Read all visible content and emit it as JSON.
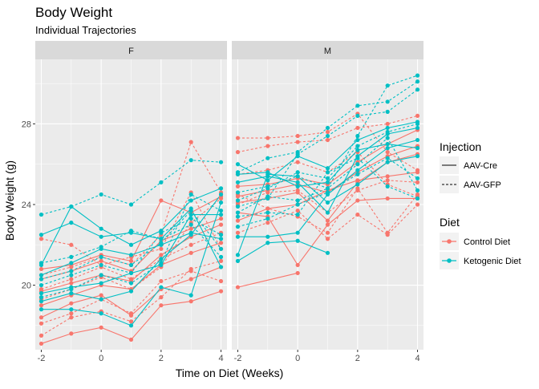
{
  "chart_data": {
    "type": "line",
    "title": "Body Weight",
    "subtitle": "Individual Trajectories",
    "xlabel": "Time on Diet (Weeks)",
    "ylabel": "Body Weight (g)",
    "xlim": [
      -2.2,
      4.2
    ],
    "ylim": [
      16.8,
      31.2
    ],
    "x_ticks": [
      -2,
      0,
      2,
      4
    ],
    "y_ticks": [
      20,
      24,
      28
    ],
    "x": [
      -2,
      -1,
      0,
      1,
      2,
      3,
      4
    ],
    "grid": true,
    "legend_placement": "right",
    "colors": {
      "control": "#F8766D",
      "ketogenic": "#00BFC4"
    },
    "facets": [
      {
        "label": "F",
        "series": [
          {
            "diet": "control",
            "injection": "AAV-Cre",
            "values": [
              17.1,
              17.6,
              17.9,
              17.3,
              19.0,
              19.2,
              19.7
            ]
          },
          {
            "diet": "control",
            "injection": "AAV-Cre",
            "values": [
              18.4,
              19.1,
              19.5,
              18.5,
              19.8,
              20.3,
              20.9
            ]
          },
          {
            "diet": "control",
            "injection": "AAV-Cre",
            "values": [
              19.0,
              19.5,
              20.0,
              19.8,
              21.0,
              21.6,
              22.1
            ]
          },
          {
            "diet": "control",
            "injection": "AAV-Cre",
            "values": [
              19.7,
              20.1,
              20.5,
              20.2,
              21.5,
              22.4,
              23.0
            ]
          },
          {
            "diet": "control",
            "injection": "AAV-Cre",
            "values": [
              20.3,
              20.7,
              21.2,
              20.7,
              22.2,
              22.8,
              23.3
            ]
          },
          {
            "diet": "control",
            "injection": "AAV-Cre",
            "values": [
              20.8,
              21.0,
              21.5,
              21.2,
              24.2,
              23.6,
              24.4
            ]
          },
          {
            "diet": "control",
            "injection": "AAV-GFP",
            "values": [
              17.5,
              18.4,
              18.7,
              18.2,
              19.4,
              20.8,
              21.2
            ]
          },
          {
            "diet": "control",
            "injection": "AAV-GFP",
            "values": [
              18.1,
              18.6,
              19.3,
              18.6,
              20.2,
              20.7,
              20.2
            ]
          },
          {
            "diet": "control",
            "injection": "AAV-GFP",
            "values": [
              19.8,
              20.3,
              20.9,
              20.3,
              21.3,
              22.0,
              22.6
            ]
          },
          {
            "diet": "control",
            "injection": "AAV-GFP",
            "values": [
              20.5,
              20.9,
              21.4,
              21.0,
              22.5,
              27.1,
              24.6
            ]
          },
          {
            "diet": "control",
            "injection": "AAV-GFP",
            "values": [
              22.3,
              22.0,
              21.0,
              21.4,
              21.8,
              24.6,
              21.8
            ]
          },
          {
            "diet": "control",
            "injection": "AAV-GFP",
            "values": [
              19.3,
              19.8,
              20.4,
              19.8,
              20.9,
              23.1,
              24.3
            ]
          },
          {
            "diet": "ketogenic",
            "injection": "AAV-Cre",
            "values": [
              18.8,
              18.8,
              18.6,
              18.0,
              19.9,
              19.5,
              24.1
            ]
          },
          {
            "diet": "ketogenic",
            "injection": "AAV-Cre",
            "values": [
              19.6,
              19.9,
              20.1,
              20.6,
              21.0,
              23.5,
              23.5
            ]
          },
          {
            "diet": "ketogenic",
            "injection": "AAV-Cre",
            "values": [
              20.5,
              21.1,
              21.8,
              21.5,
              22.0,
              22.6,
              22.3
            ]
          },
          {
            "diet": "ketogenic",
            "injection": "AAV-Cre",
            "values": [
              22.5,
              23.1,
              22.4,
              22.6,
              22.3,
              23.8,
              20.9
            ]
          },
          {
            "diet": "ketogenic",
            "injection": "AAV-Cre",
            "values": [
              21.0,
              23.9,
              22.8,
              22.0,
              22.7,
              24.2,
              24.8
            ]
          },
          {
            "diet": "ketogenic",
            "injection": "AAV-Cre",
            "values": [
              19.2,
              19.6,
              19.3,
              19.7,
              21.3,
              22.5,
              24.5
            ]
          },
          {
            "diet": "ketogenic",
            "injection": "AAV-GFP",
            "values": [
              23.5,
              23.9,
              24.5,
              24.0,
              25.1,
              26.2,
              26.1
            ]
          },
          {
            "diet": "ketogenic",
            "injection": "AAV-GFP",
            "values": [
              19.4,
              19.8,
              20.5,
              20.1,
              21.1,
              24.5,
              23.7
            ]
          },
          {
            "diet": "ketogenic",
            "injection": "AAV-GFP",
            "values": [
              20.0,
              20.5,
              21.0,
              20.6,
              22.6,
              23.3,
              22.5
            ]
          },
          {
            "diet": "ketogenic",
            "injection": "AAV-GFP",
            "values": [
              21.1,
              21.4,
              21.9,
              22.7,
              22.3,
              23.0,
              21.4
            ]
          },
          {
            "diet": "ketogenic",
            "injection": "AAV-GFP",
            "values": [
              20.3,
              20.7,
              21.4,
              21.0,
              22.1,
              23.7,
              21.8
            ]
          }
        ]
      },
      {
        "label": "M",
        "series": [
          {
            "diet": "control",
            "injection": "AAV-Cre",
            "values": [
              19.9,
              null,
              20.6,
              null,
              null,
              null,
              null
            ]
          },
          {
            "diet": "control",
            "injection": "AAV-Cre",
            "values": [
              23.6,
              23.4,
              21.0,
              23.0,
              24.2,
              24.3,
              24.3
            ]
          },
          {
            "diet": "control",
            "injection": "AAV-Cre",
            "values": [
              24.1,
              24.3,
              24.6,
              23.2,
              25.1,
              26.1,
              26.5
            ]
          },
          {
            "diet": "control",
            "injection": "AAV-Cre",
            "values": [
              24.4,
              24.7,
              25.0,
              24.6,
              25.6,
              26.4,
              26.9
            ]
          },
          {
            "diet": "control",
            "injection": "AAV-Cre",
            "values": [
              24.9,
              25.0,
              25.3,
              25.0,
              26.1,
              27.0,
              27.7
            ]
          },
          {
            "diet": "control",
            "injection": "AAV-Cre",
            "values": [
              23.2,
              23.8,
              24.0,
              24.7,
              25.2,
              25.4,
              25.6
            ]
          },
          {
            "diet": "control",
            "injection": "AAV-GFP",
            "values": [
              27.3,
              27.3,
              27.4,
              27.6,
              28.5,
              26.6,
              25.7
            ]
          },
          {
            "diet": "control",
            "injection": "AAV-GFP",
            "values": [
              26.6,
              26.9,
              27.1,
              27.2,
              27.8,
              28.0,
              28.4
            ]
          },
          {
            "diet": "control",
            "injection": "AAV-GFP",
            "values": [
              25.5,
              25.7,
              26.1,
              25.6,
              26.6,
              25.0,
              24.4
            ]
          },
          {
            "diet": "control",
            "injection": "AAV-GFP",
            "values": [
              24.5,
              23.8,
              23.4,
              22.6,
              24.8,
              22.6,
              24.5
            ]
          },
          {
            "diet": "control",
            "injection": "AAV-GFP",
            "values": [
              22.6,
              23.1,
              23.7,
              22.3,
              23.5,
              22.5,
              24.0
            ]
          },
          {
            "diet": "control",
            "injection": "AAV-GFP",
            "values": [
              24.0,
              24.6,
              24.7,
              23.6,
              24.7,
              25.2,
              25.1
            ]
          },
          {
            "diet": "ketogenic",
            "injection": "AAV-Cre",
            "values": [
              21.2,
              22.1,
              22.2,
              21.6,
              null,
              null,
              null
            ]
          },
          {
            "diet": "ketogenic",
            "injection": "AAV-Cre",
            "values": [
              21.5,
              25.5,
              25.4,
              24.1,
              25.0,
              26.1,
              26.4
            ]
          },
          {
            "diet": "ketogenic",
            "injection": "AAV-Cre",
            "values": [
              22.4,
              22.4,
              22.6,
              24.5,
              25.7,
              26.8,
              27.2
            ]
          },
          {
            "diet": "ketogenic",
            "injection": "AAV-Cre",
            "values": [
              25.1,
              25.4,
              25.1,
              23.6,
              26.4,
              27.5,
              27.8
            ]
          },
          {
            "diet": "ketogenic",
            "injection": "AAV-Cre",
            "values": [
              25.5,
              25.6,
              24.9,
              25.1,
              26.7,
              27.0,
              26.8
            ]
          },
          {
            "diet": "ketogenic",
            "injection": "AAV-Cre",
            "values": [
              26.0,
              25.2,
              26.4,
              25.8,
              27.2,
              27.8,
              28.1
            ]
          },
          {
            "diet": "ketogenic",
            "injection": "AAV-GFP",
            "values": [
              23.6,
              24.4,
              24.2,
              24.8,
              27.4,
              29.9,
              30.4
            ]
          },
          {
            "diet": "ketogenic",
            "injection": "AAV-GFP",
            "values": [
              25.6,
              26.3,
              26.6,
              27.8,
              28.9,
              29.1,
              30.1
            ]
          },
          {
            "diet": "ketogenic",
            "injection": "AAV-GFP",
            "values": [
              23.9,
              24.3,
              26.5,
              27.4,
              28.4,
              28.6,
              29.7
            ]
          },
          {
            "diet": "ketogenic",
            "injection": "AAV-GFP",
            "values": [
              24.2,
              24.8,
              25.6,
              25.3,
              26.9,
              27.6,
              28.0
            ]
          },
          {
            "diet": "ketogenic",
            "injection": "AAV-GFP",
            "values": [
              22.9,
              23.3,
              24.0,
              24.6,
              25.5,
              26.3,
              25.3
            ]
          },
          {
            "diet": "ketogenic",
            "injection": "AAV-GFP",
            "values": [
              24.6,
              24.9,
              25.4,
              24.8,
              26.0,
              27.3,
              24.7
            ]
          },
          {
            "diet": "ketogenic",
            "injection": "AAV-GFP",
            "values": [
              23.4,
              23.6,
              23.5,
              25.6,
              26.3,
              24.9,
              24.3
            ]
          }
        ]
      }
    ],
    "legend": {
      "injection_title": "Injection",
      "injection_items": [
        {
          "label": "AAV-Cre",
          "linetype": "solid"
        },
        {
          "label": "AAV-GFP",
          "linetype": "dashed"
        }
      ],
      "diet_title": "Diet",
      "diet_items": [
        {
          "key": "control",
          "label": "Control Diet"
        },
        {
          "key": "ketogenic",
          "label": "Ketogenic Diet"
        }
      ]
    }
  }
}
